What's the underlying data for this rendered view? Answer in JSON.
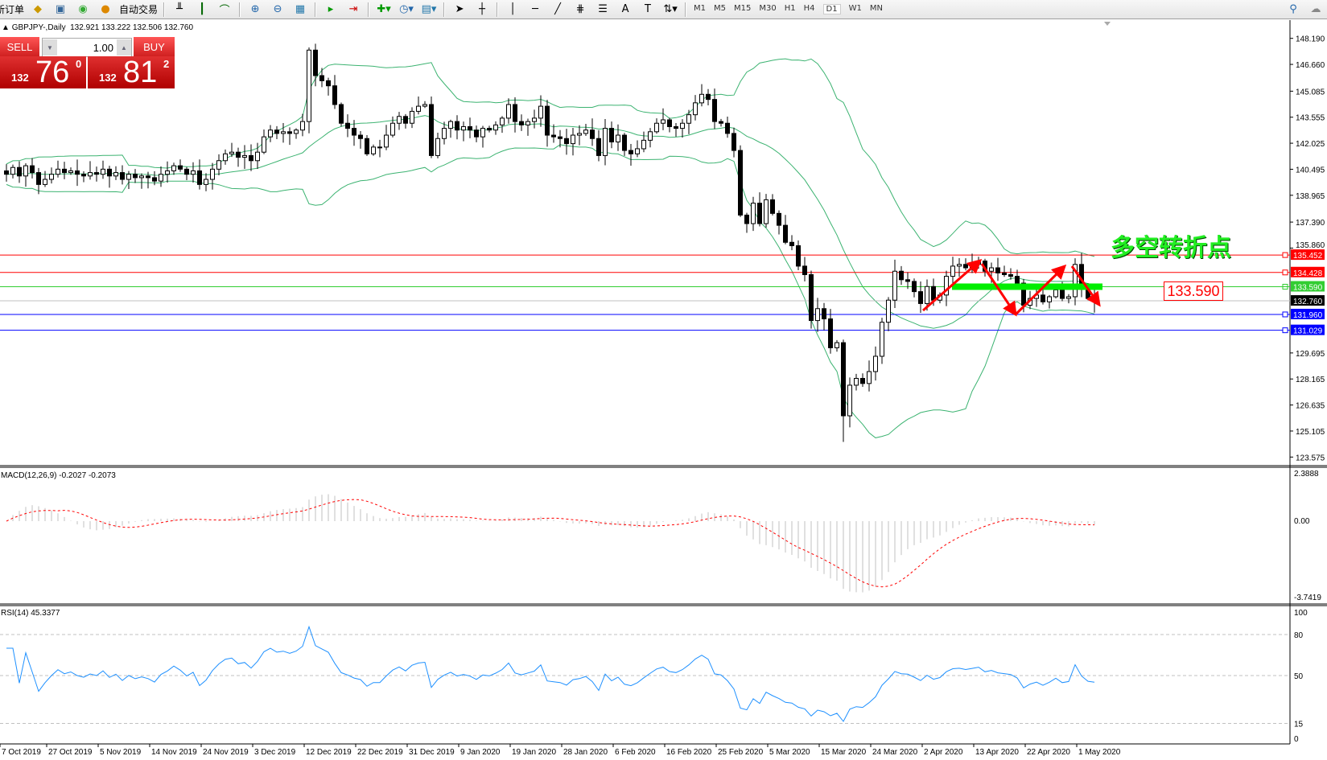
{
  "toolbar": {
    "new_order": "新订单",
    "auto_trading": "自动交易",
    "timeframes": [
      "M1",
      "M5",
      "M15",
      "M30",
      "H1",
      "H4",
      "D1",
      "W1",
      "MN"
    ],
    "active_timeframe": "D1"
  },
  "header": {
    "symbol": "GBPJPY-,Daily",
    "ohlc": "132.921 133.222 132.506 132.760"
  },
  "trade_panel": {
    "sell_label": "SELL",
    "buy_label": "BUY",
    "lot": "1.00",
    "sell_big": "132",
    "sell_main": "76",
    "sell_sup": "0",
    "buy_big": "132",
    "buy_main": "81",
    "buy_sup": "2"
  },
  "annotation": {
    "text": "多空转折点",
    "price_box": "133.590"
  },
  "colors": {
    "bands": "#3cb371",
    "rsi": "#1e90ff",
    "macd_signal": "#ff0000",
    "macd_hist": "#c0c0c0",
    "highlight": "#00ee00",
    "arrow": "#ff0000"
  },
  "chart_data": {
    "type": "candlestick",
    "symbol": "GBPJPY",
    "timeframe": "Daily",
    "price_ticks": [
      "148.190",
      "146.660",
      "145.085",
      "143.555",
      "142.025",
      "140.495",
      "138.965",
      "137.390",
      "135.860",
      "129.695",
      "128.165",
      "126.635",
      "125.105",
      "123.575"
    ],
    "price_range": [
      123.575,
      148.19
    ],
    "date_labels": [
      "7 Oct 2019",
      "27 Oct 2019",
      "5 Nov 2019",
      "14 Nov 2019",
      "24 Nov 2019",
      "3 Dec 2019",
      "12 Dec 2019",
      "22 Dec 2019",
      "31 Dec 2019",
      "9 Jan 2020",
      "19 Jan 2020",
      "28 Jan 2020",
      "6 Feb 2020",
      "16 Feb 2020",
      "25 Feb 2020",
      "5 Mar 2020",
      "15 Mar 2020",
      "24 Mar 2020",
      "2 Apr 2020",
      "13 Apr 2020",
      "22 Apr 2020",
      "1 May 2020"
    ],
    "closes": [
      140.2,
      140.6,
      140.1,
      140.7,
      140.3,
      139.6,
      139.9,
      140.2,
      140.5,
      140.3,
      140.4,
      140.2,
      140.1,
      140.3,
      140.2,
      140.5,
      140.1,
      140.3,
      139.9,
      140.2,
      140.0,
      140.1,
      140.0,
      139.8,
      140.2,
      140.4,
      140.7,
      140.5,
      140.2,
      140.4,
      139.6,
      139.9,
      140.5,
      141.0,
      141.4,
      141.5,
      141.2,
      141.3,
      141.0,
      141.5,
      142.4,
      142.8,
      142.6,
      142.7,
      142.6,
      142.8,
      143.3,
      147.5,
      146.0,
      145.7,
      145.4,
      144.3,
      143.2,
      142.9,
      142.5,
      142.3,
      141.4,
      141.8,
      141.8,
      142.5,
      143.2,
      143.6,
      143.2,
      143.9,
      144.2,
      144.3,
      141.3,
      142.3,
      142.9,
      143.3,
      142.8,
      143.0,
      142.8,
      142.4,
      142.9,
      142.8,
      143.1,
      143.5,
      144.3,
      143.3,
      143.1,
      143.3,
      143.5,
      144.2,
      142.5,
      142.4,
      142.3,
      142.0,
      142.5,
      142.6,
      142.8,
      142.3,
      141.3,
      142.9,
      142.1,
      142.5,
      141.6,
      141.4,
      141.7,
      142.2,
      142.7,
      143.2,
      143.4,
      143.0,
      142.9,
      143.2,
      143.7,
      144.4,
      144.9,
      144.6,
      143.3,
      143.2,
      142.6,
      141.6,
      137.8,
      137.3,
      138.5,
      137.3,
      138.7,
      137.9,
      137.2,
      136.2,
      136.0,
      134.8,
      134.3,
      131.6,
      132.3,
      131.7,
      130.0,
      130.3,
      126.0,
      127.8,
      128.2,
      127.9,
      128.6,
      129.5,
      131.5,
      132.8,
      134.5,
      134.0,
      133.9,
      133.3,
      132.6,
      133.6,
      132.8,
      133.1,
      134.2,
      134.8,
      134.9,
      134.7,
      134.9,
      135.1,
      134.5,
      134.7,
      134.4,
      134.3,
      134.2,
      133.8,
      132.5,
      132.9,
      133.1,
      132.7,
      133.0,
      133.4,
      132.9,
      133.0,
      134.9,
      133.6,
      132.9,
      132.76
    ],
    "horizontal_lines": [
      {
        "price": "135.452",
        "color": "#ff0000"
      },
      {
        "price": "134.428",
        "color": "#ff0000"
      },
      {
        "price": "133.590",
        "color": "#32cd32"
      },
      {
        "price": "132.760",
        "color": "#000000"
      },
      {
        "price": "131.960",
        "color": "#0000ff"
      },
      {
        "price": "131.029",
        "color": "#0000ff"
      }
    ],
    "indicators": {
      "bollinger": {
        "period": 20,
        "deviation": 2
      },
      "macd": {
        "label": "MACD(12,26,9) -0.2027 -0.2073",
        "ticks": [
          "2.3888",
          "0.00",
          "-3.7419"
        ],
        "range": [
          -3.7419,
          2.3888
        ]
      },
      "rsi": {
        "label": "RSI(14) 45.3377",
        "ticks": [
          "100",
          "80",
          "50",
          "15",
          "0"
        ],
        "levels": [
          80,
          50,
          15
        ]
      }
    }
  }
}
